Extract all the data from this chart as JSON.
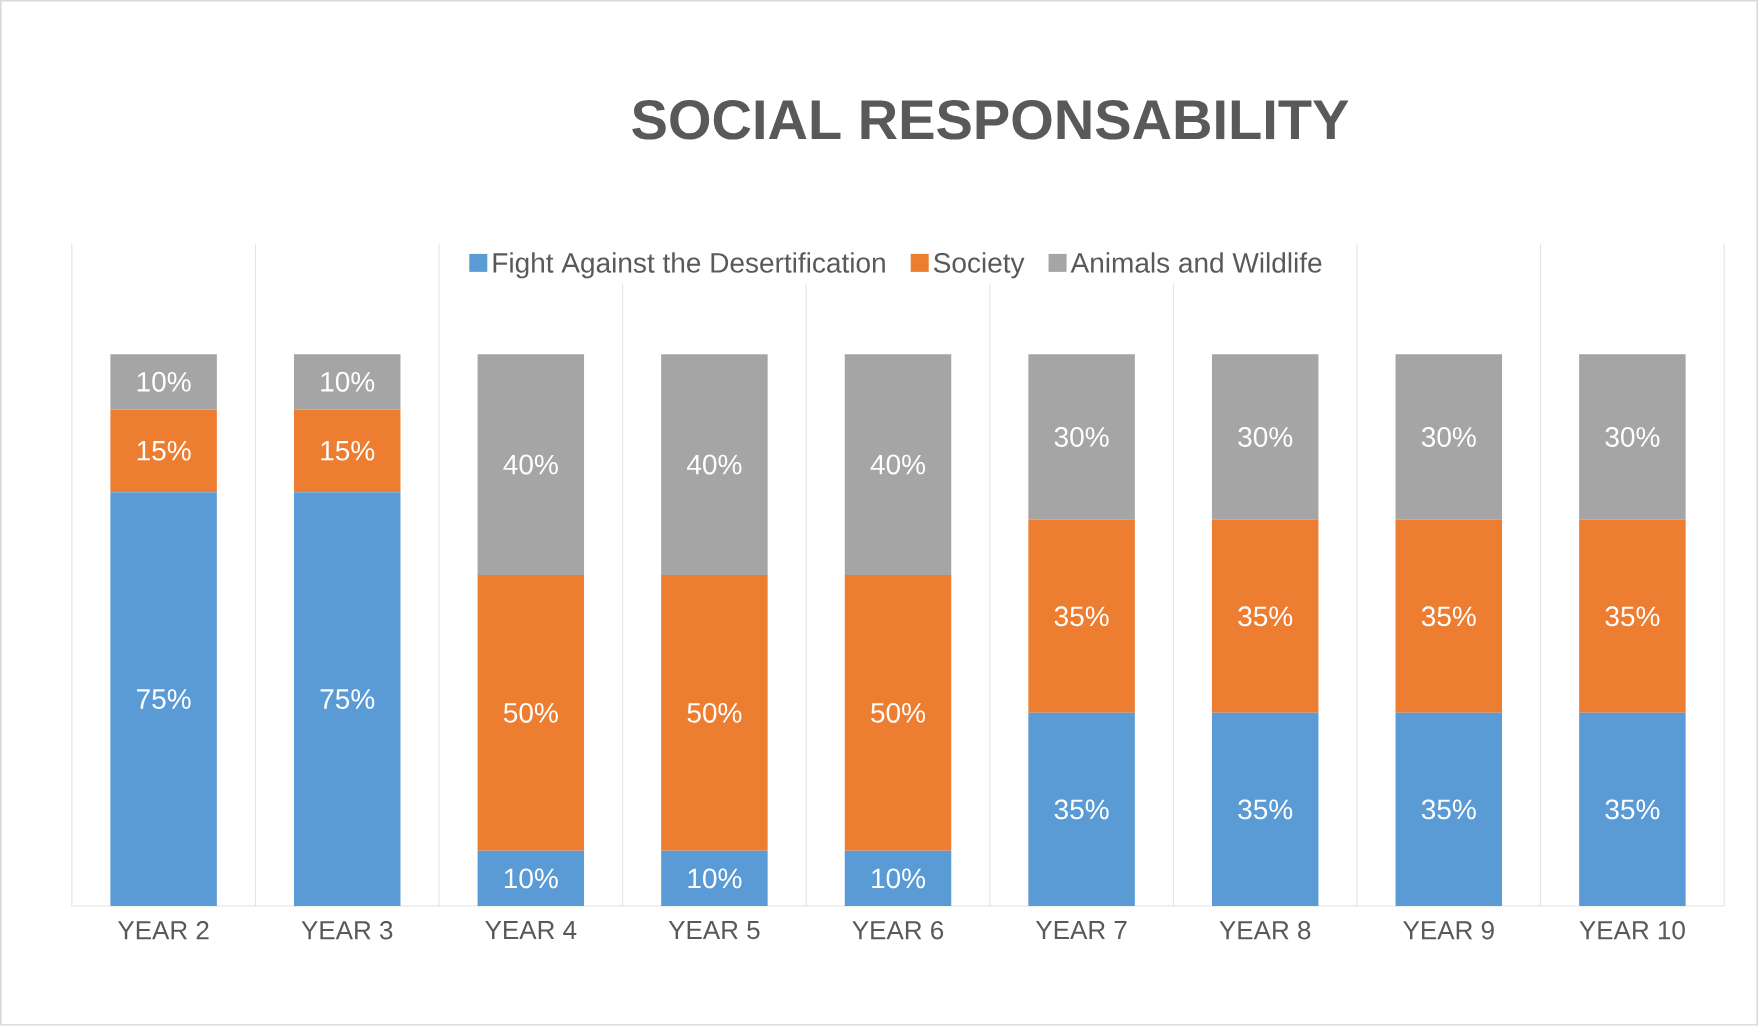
{
  "chart_data": {
    "type": "bar",
    "title": "SOCIAL RESPONSABILITY",
    "categories": [
      "YEAR 2",
      "YEAR 3",
      "YEAR 4",
      "YEAR 5",
      "YEAR 6",
      "YEAR 7",
      "YEAR 8",
      "YEAR 9",
      "YEAR 10"
    ],
    "series": [
      {
        "name": "Fight Against the Desertification",
        "color": "#5b9bd5",
        "values": [
          75,
          75,
          10,
          10,
          10,
          35,
          35,
          35,
          35
        ],
        "value_labels": [
          "75%",
          "75%",
          "10%",
          "10%",
          "10%",
          "35%",
          "35%",
          "35%",
          "35%"
        ]
      },
      {
        "name": "Society",
        "color": "#ed7d31",
        "values": [
          15,
          15,
          50,
          50,
          50,
          35,
          35,
          35,
          35
        ],
        "value_labels": [
          "15%",
          "15%",
          "50%",
          "50%",
          "50%",
          "35%",
          "35%",
          "35%",
          "35%"
        ]
      },
      {
        "name": "Animals and Wildlife",
        "color": "#a5a5a5",
        "values": [
          10,
          10,
          40,
          40,
          40,
          30,
          30,
          30,
          30
        ],
        "value_labels": [
          "10%",
          "10%",
          "40%",
          "40%",
          "40%",
          "30%",
          "30%",
          "30%",
          "30%"
        ]
      }
    ],
    "stacked": true,
    "tick_labels": "x",
    "grid": "x",
    "legend": "top"
  }
}
